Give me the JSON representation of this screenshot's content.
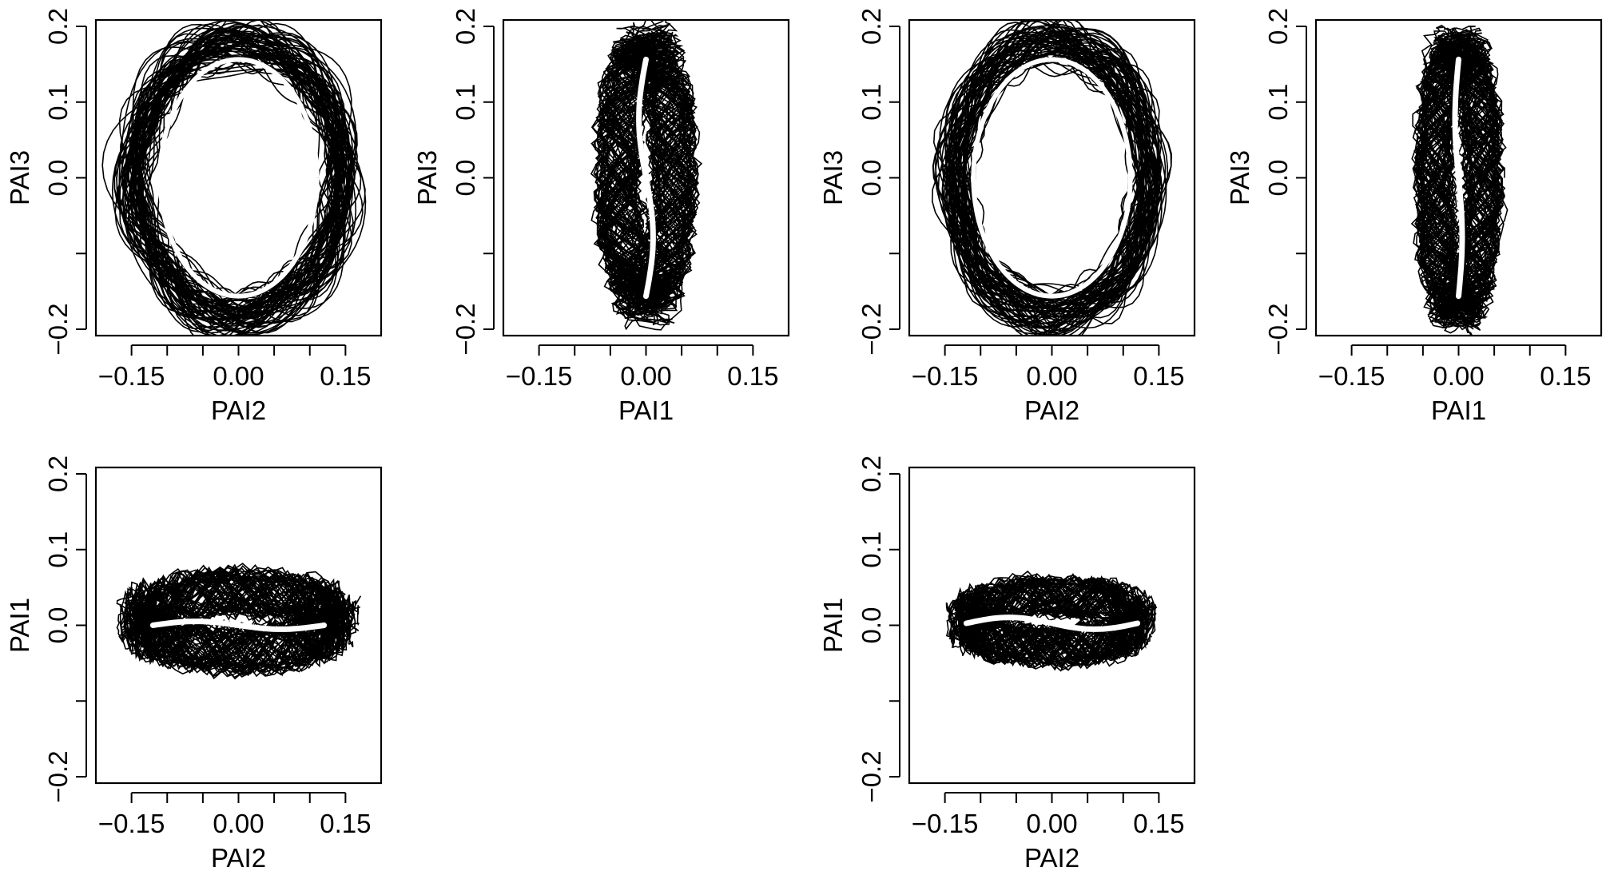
{
  "chart_data": [
    {
      "type": "line",
      "xlabel": "PAI2",
      "ylabel": "PAI3",
      "xlim": [
        -0.2,
        0.2
      ],
      "ylim": [
        -0.2,
        0.2
      ],
      "x_ticks": [
        "-0.15",
        "0.00",
        "0.15"
      ],
      "y_ticks": [
        "-0.2",
        "0.0",
        "0.1",
        "0.2"
      ],
      "grid": false,
      "series": [
        {
          "role": "sample-curves",
          "color": "#000000",
          "shape": "ellipse",
          "x_range": [
            -0.16,
            0.16
          ],
          "y_range": [
            -0.19,
            0.19
          ]
        },
        {
          "role": "mean-curve",
          "color": "#ffffff",
          "shape": "ellipse",
          "x_range": [
            -0.11,
            0.11
          ],
          "y_range": [
            -0.15,
            0.15
          ]
        }
      ]
    },
    {
      "type": "line",
      "xlabel": "PAI1",
      "ylabel": "PAI3",
      "xlim": [
        -0.2,
        0.2
      ],
      "ylim": [
        -0.2,
        0.2
      ],
      "x_ticks": [
        "-0.15",
        "0.00",
        "0.15"
      ],
      "y_ticks": [
        "-0.2",
        "0.0",
        "0.1",
        "0.2"
      ],
      "grid": false,
      "series": [
        {
          "role": "sample-curves",
          "color": "#000000",
          "shape": "band",
          "x_range": [
            -0.08,
            0.08
          ],
          "y_range": [
            -0.18,
            0.19
          ]
        },
        {
          "role": "mean-curve",
          "color": "#ffffff",
          "shape": "vertical-line",
          "x_range": [
            -0.01,
            0.01
          ],
          "y_range": [
            -0.15,
            0.15
          ]
        }
      ]
    },
    {
      "type": "line",
      "xlabel": "PAI2",
      "ylabel": "PAI3",
      "xlim": [
        -0.2,
        0.2
      ],
      "ylim": [
        -0.2,
        0.2
      ],
      "x_ticks": [
        "-0.15",
        "0.00",
        "0.15"
      ],
      "y_ticks": [
        "-0.2",
        "0.0",
        "0.1",
        "0.2"
      ],
      "grid": false,
      "series": [
        {
          "role": "sample-curves",
          "color": "#000000",
          "shape": "ellipse",
          "x_range": [
            -0.15,
            0.15
          ],
          "y_range": [
            -0.19,
            0.19
          ]
        },
        {
          "role": "mean-curve",
          "color": "#ffffff",
          "shape": "ellipse",
          "x_range": [
            -0.11,
            0.11
          ],
          "y_range": [
            -0.15,
            0.15
          ]
        }
      ]
    },
    {
      "type": "line",
      "xlabel": "PAI1",
      "ylabel": "PAI3",
      "xlim": [
        -0.2,
        0.2
      ],
      "ylim": [
        -0.2,
        0.2
      ],
      "x_ticks": [
        "-0.15",
        "0.00",
        "0.15"
      ],
      "y_ticks": [
        "-0.2",
        "0.0",
        "0.1",
        "0.2"
      ],
      "grid": false,
      "series": [
        {
          "role": "sample-curves",
          "color": "#000000",
          "shape": "band",
          "x_range": [
            -0.07,
            0.07
          ],
          "y_range": [
            -0.19,
            0.19
          ]
        },
        {
          "role": "mean-curve",
          "color": "#ffffff",
          "shape": "vertical-line",
          "x_range": [
            -0.005,
            0.005
          ],
          "y_range": [
            -0.15,
            0.15
          ]
        }
      ]
    },
    {
      "type": "line",
      "xlabel": "PAI2",
      "ylabel": "PAI1",
      "xlim": [
        -0.2,
        0.2
      ],
      "ylim": [
        -0.2,
        0.2
      ],
      "x_ticks": [
        "-0.15",
        "0.00",
        "0.15"
      ],
      "y_ticks": [
        "-0.2",
        "0.0",
        "0.1",
        "0.2"
      ],
      "grid": false,
      "series": [
        {
          "role": "sample-curves",
          "color": "#000000",
          "shape": "band",
          "x_range": [
            -0.16,
            0.16
          ],
          "y_range": [
            -0.07,
            0.08
          ]
        },
        {
          "role": "mean-curve",
          "color": "#ffffff",
          "shape": "horizontal-line",
          "x_range": [
            -0.12,
            0.12
          ],
          "y_range": [
            -0.005,
            0.005
          ]
        }
      ]
    },
    {
      "type": "line",
      "xlabel": "PAI2",
      "ylabel": "PAI1",
      "xlim": [
        -0.2,
        0.2
      ],
      "ylim": [
        -0.2,
        0.2
      ],
      "x_ticks": [
        "-0.15",
        "0.00",
        "0.15"
      ],
      "y_ticks": [
        "-0.2",
        "0.0",
        "0.1",
        "0.2"
      ],
      "grid": false,
      "series": [
        {
          "role": "sample-curves",
          "color": "#000000",
          "shape": "band",
          "x_range": [
            -0.14,
            0.14
          ],
          "y_range": [
            -0.06,
            0.07
          ]
        },
        {
          "role": "mean-curve",
          "color": "#ffffff",
          "shape": "horizontal-line",
          "x_range": [
            -0.12,
            0.12
          ],
          "y_range": [
            -0.005,
            0.01
          ]
        }
      ]
    }
  ]
}
